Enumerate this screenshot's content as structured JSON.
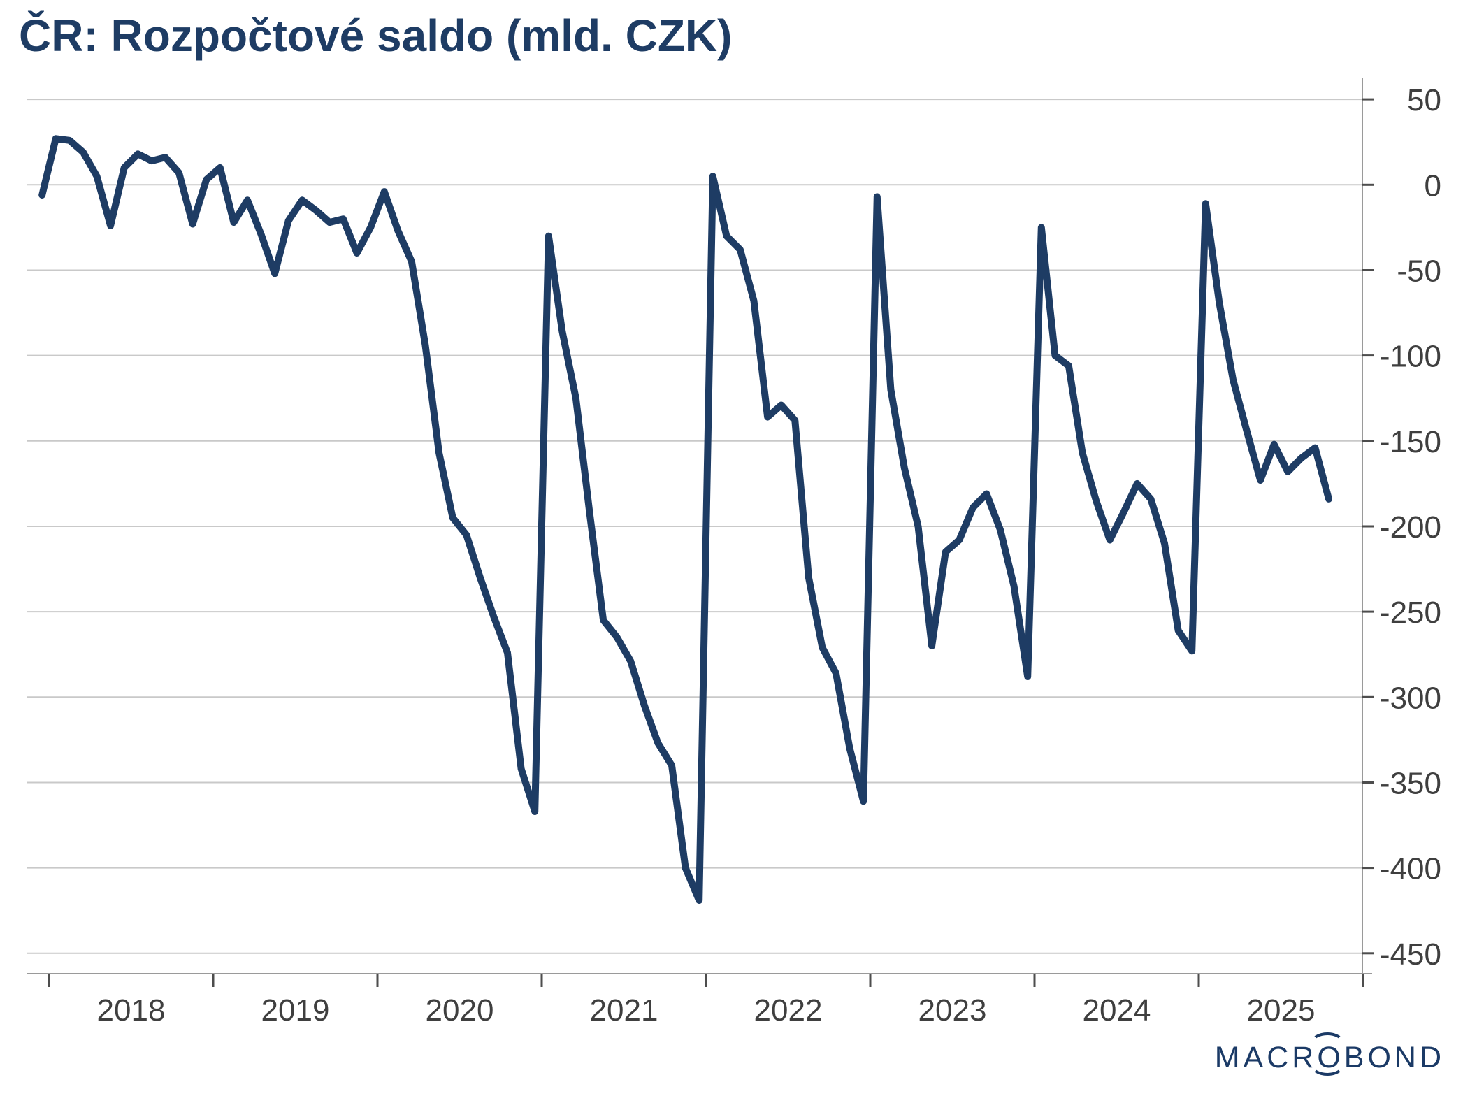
{
  "title": "ČR: Rozpočtové saldo (mld. CZK)",
  "branding": {
    "logo_prefix": "MACR",
    "logo_o": "O",
    "logo_suffix": "BOND"
  },
  "chart_data": {
    "type": "line",
    "title": "ČR: Rozpočtové saldo (mld. CZK)",
    "ylabel": "mld. CZK",
    "ylim": [
      -462,
      62
    ],
    "grid": "horizontal",
    "legend_position": "none",
    "y_ticks": [
      50,
      0,
      -50,
      -100,
      -150,
      -200,
      -250,
      -300,
      -350,
      -400,
      -450
    ],
    "x_tick_years": [
      2018,
      2019,
      2020,
      2021,
      2022,
      2023,
      2024,
      2025
    ],
    "line_color": "#1e3c64",
    "gridline_color": "#c9c9c9",
    "axis_color": "#9a9a9a",
    "tick_color": "#4d4d4d",
    "label_color": "#3f3f3f",
    "start_month": "2017-12",
    "end_month": "2025-10",
    "series": [
      {
        "name": "Rozpočtové saldo (mld. CZK)",
        "frequency": "monthly",
        "values": [
          -6,
          27,
          26,
          19,
          5,
          -24,
          10,
          18,
          14,
          16,
          7,
          -23,
          3,
          10,
          -22,
          -9,
          -29,
          -52,
          -21,
          -9,
          -15,
          -22,
          -20,
          -40,
          -25,
          -4,
          -27,
          -45,
          -94,
          -157,
          -195,
          -205,
          -230,
          -253,
          -274,
          -342,
          -367,
          -30,
          -86,
          -125,
          -192,
          -255,
          -265,
          -279,
          -305,
          -327,
          -340,
          -400,
          -419,
          5,
          -30,
          -38,
          -68,
          -136,
          -129,
          -138,
          -230,
          -271,
          -286,
          -330,
          -361,
          -7,
          -120,
          -166,
          -200,
          -270,
          -215,
          -208,
          -189,
          -181,
          -202,
          -235,
          -288,
          -25,
          -100,
          -106,
          -157,
          -185,
          -208,
          -192,
          -175,
          -184,
          -210,
          -261,
          -273,
          -11,
          -69,
          -114,
          -144,
          -173,
          -152,
          -168,
          -160,
          -154,
          -184
        ]
      }
    ]
  }
}
